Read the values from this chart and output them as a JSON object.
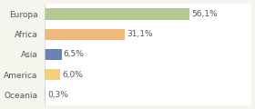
{
  "categories": [
    "Europa",
    "Africa",
    "Asia",
    "America",
    "Oceania"
  ],
  "values": [
    56.1,
    31.1,
    6.5,
    6.0,
    0.3
  ],
  "labels": [
    "56,1%",
    "31,1%",
    "6,5%",
    "6,0%",
    "0,3%"
  ],
  "bar_colors": [
    "#b5c98e",
    "#f0b87a",
    "#6b82b8",
    "#f5d07a",
    "#f0b87a"
  ],
  "background_color": "#ffffff",
  "fig_background_color": "#f5f5ee",
  "text_color": "#555555",
  "label_fontsize": 6.5,
  "tick_fontsize": 6.5,
  "xlim": [
    0,
    80
  ],
  "bar_height": 0.55
}
